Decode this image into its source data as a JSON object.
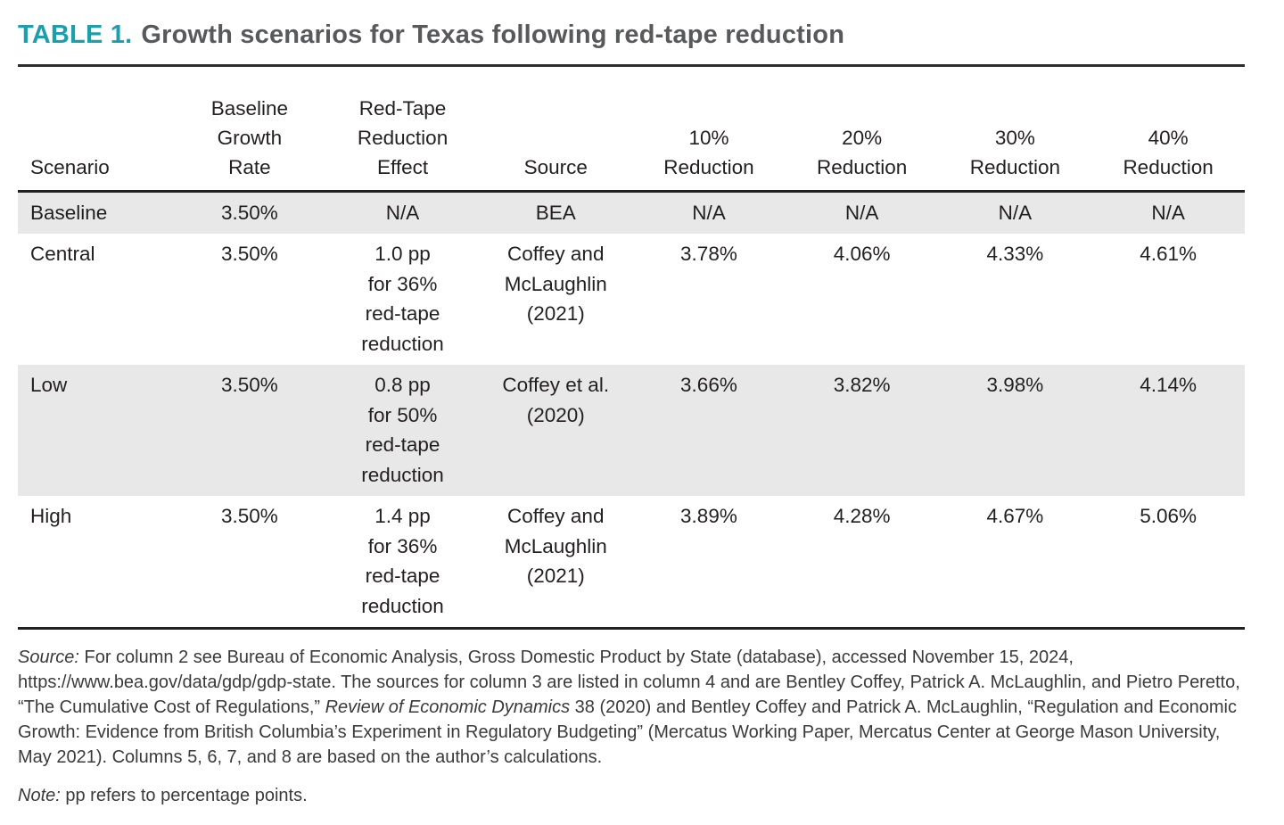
{
  "title": {
    "label": "TABLE 1.",
    "text": "Growth scenarios for Texas following red-tape reduction"
  },
  "table": {
    "columns": [
      {
        "key": "scenario",
        "label": "Scenario"
      },
      {
        "key": "baseline-growth-rate",
        "label": "Baseline\nGrowth\nRate"
      },
      {
        "key": "red-tape-reduction-effect",
        "label": "Red-Tape\nReduction\nEffect"
      },
      {
        "key": "source",
        "label": "Source"
      },
      {
        "key": "reduction-10",
        "label": "10%\nReduction"
      },
      {
        "key": "reduction-20",
        "label": "20%\nReduction"
      },
      {
        "key": "reduction-30",
        "label": "30%\nReduction"
      },
      {
        "key": "reduction-40",
        "label": "40%\nReduction"
      }
    ],
    "rows": [
      {
        "scenario": "baseline",
        "shaded": true,
        "cells": [
          "Baseline",
          "3.50%",
          "N/A",
          "BEA",
          "N/A",
          "N/A",
          "N/A",
          "N/A"
        ]
      },
      {
        "scenario": "central",
        "shaded": false,
        "cells": [
          "Central",
          "3.50%",
          "1.0 pp\nfor 36%\nred-tape\nreduction",
          "Coffey and\nMcLaughlin\n(2021)",
          "3.78%",
          "4.06%",
          "4.33%",
          "4.61%"
        ]
      },
      {
        "scenario": "low",
        "shaded": true,
        "cells": [
          "Low",
          "3.50%",
          "0.8 pp\nfor 50%\nred-tape\nreduction",
          "Coffey et al.\n(2020)",
          "3.66%",
          "3.82%",
          "3.98%",
          "4.14%"
        ]
      },
      {
        "scenario": "high",
        "shaded": false,
        "cells": [
          "High",
          "3.50%",
          "1.4 pp\nfor 36%\nred-tape\nreduction",
          "Coffey and\nMcLaughlin\n(2021)",
          "3.89%",
          "4.28%",
          "4.67%",
          "5.06%"
        ]
      }
    ]
  },
  "footnotes": {
    "source_segments": [
      {
        "text": "Source:",
        "italic": true
      },
      {
        "text": " For column 2 see Bureau of Economic Analysis, Gross Domestic Product by State (database), accessed November 15, 2024, https://www.bea.gov/data/gdp/gdp-state. The sources for column 3 are listed in column 4 and are Bentley Coffey, Patrick A. McLaughlin, and Pietro Peretto, “The Cumulative Cost of Regulations,” ",
        "italic": false
      },
      {
        "text": "Review of Economic Dynamics",
        "italic": true
      },
      {
        "text": " 38 (2020) and Bentley Coffey and Patrick A. McLaughlin, “Regulation and Economic Growth: Evidence from British Columbia’s Experiment in Regulatory Budgeting” (Mercatus Working Paper, Mercatus Center at George Mason University, May 2021). Columns 5, 6, 7, and 8 are based on the author’s calculations.",
        "italic": false
      }
    ],
    "note_segments": [
      {
        "text": "Note:",
        "italic": true
      },
      {
        "text": " pp refers to percentage points.",
        "italic": false
      }
    ]
  },
  "colors": {
    "accent_teal": "#1C9EAC",
    "title_gray": "#58595B",
    "text": "#231F20",
    "row_shade": "#E8E8E8"
  }
}
